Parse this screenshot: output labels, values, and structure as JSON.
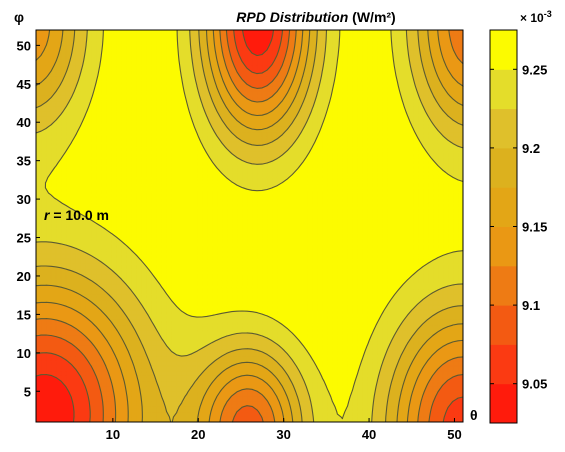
{
  "chart_data": {
    "type": "heatmap",
    "title_main": "RPD Distribution",
    "title_unit": "(W/m²)",
    "xlabel": "θ",
    "ylabel": "φ",
    "annotation": {
      "var": "r",
      "text": " = 10.0 m"
    },
    "x_ticks": [
      "10",
      "20",
      "30",
      "40",
      "50"
    ],
    "x_tick_values": [
      10,
      20,
      30,
      40,
      50
    ],
    "y_ticks": [
      "5",
      "10",
      "15",
      "20",
      "25",
      "30",
      "35",
      "40",
      "45",
      "50"
    ],
    "y_tick_values": [
      5,
      10,
      15,
      20,
      25,
      30,
      35,
      40,
      45,
      50
    ],
    "xlim": [
      1,
      51
    ],
    "ylim": [
      1,
      52
    ],
    "colorbar": {
      "exponent_label": "× 10",
      "exponent_power": "-3",
      "tick_labels": [
        "9.05",
        "9.1",
        "9.15",
        "9.2",
        "9.25"
      ],
      "tick_values": [
        9.05,
        9.1,
        9.15,
        9.2,
        9.25
      ],
      "range": [
        9.025,
        9.275
      ],
      "levels": [
        9.025,
        9.05,
        9.075,
        9.1,
        9.125,
        9.15,
        9.175,
        9.2,
        9.225,
        9.25,
        9.275
      ],
      "level_colors": [
        "#ff1b0c",
        "#fb3a12",
        "#f35a12",
        "#ee7b14",
        "#ea9814",
        "#e3a616",
        "#dcb11e",
        "#dfc02b",
        "#e4dd2a",
        "#fcfb00"
      ]
    },
    "field_features": [
      {
        "kind": "minimum",
        "theta": 2,
        "phi": 2,
        "value": 9.03
      },
      {
        "kind": "minimum",
        "theta": 26,
        "phi": 2,
        "value": 9.09
      },
      {
        "kind": "minimum",
        "theta": 51,
        "phi": 2,
        "value": 9.06
      },
      {
        "kind": "minimum",
        "theta": 1,
        "phi": 52,
        "value": 9.13
      },
      {
        "kind": "minimum",
        "theta": 27,
        "phi": 52,
        "value": 9.03
      },
      {
        "kind": "minimum",
        "theta": 51,
        "phi": 52,
        "value": 9.1
      },
      {
        "kind": "maximum",
        "theta": 27,
        "phi": 29,
        "value": 9.28
      }
    ]
  }
}
